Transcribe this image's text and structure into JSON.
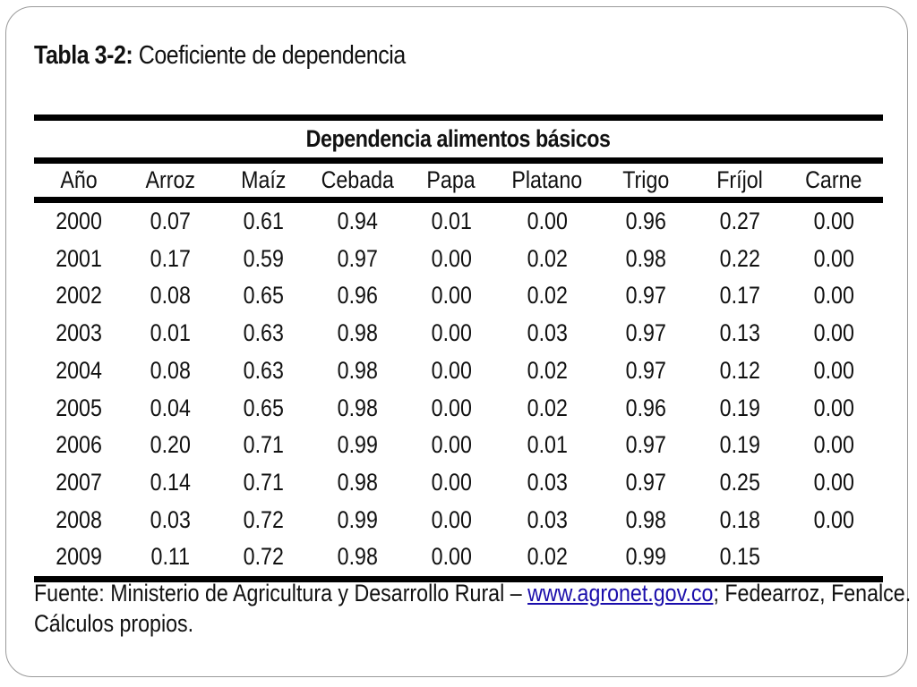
{
  "caption": {
    "label": "Tabla 3-2:",
    "title": "Coeficiente de dependencia"
  },
  "table": {
    "group_header": "Dependencia alimentos básicos",
    "columns": [
      "Año",
      "Arroz",
      "Maíz",
      "Cebada",
      "Papa",
      "Platano",
      "Trigo",
      "Fríjol",
      "Carne"
    ],
    "rows": [
      [
        "2000",
        "0.07",
        "0.61",
        "0.94",
        "0.01",
        "0.00",
        "0.96",
        "0.27",
        "0.00"
      ],
      [
        "2001",
        "0.17",
        "0.59",
        "0.97",
        "0.00",
        "0.02",
        "0.98",
        "0.22",
        "0.00"
      ],
      [
        "2002",
        "0.08",
        "0.65",
        "0.96",
        "0.00",
        "0.02",
        "0.97",
        "0.17",
        "0.00"
      ],
      [
        "2003",
        "0.01",
        "0.63",
        "0.98",
        "0.00",
        "0.03",
        "0.97",
        "0.13",
        "0.00"
      ],
      [
        "2004",
        "0.08",
        "0.63",
        "0.98",
        "0.00",
        "0.02",
        "0.97",
        "0.12",
        "0.00"
      ],
      [
        "2005",
        "0.04",
        "0.65",
        "0.98",
        "0.00",
        "0.02",
        "0.96",
        "0.19",
        "0.00"
      ],
      [
        "2006",
        "0.20",
        "0.71",
        "0.99",
        "0.00",
        "0.01",
        "0.97",
        "0.19",
        "0.00"
      ],
      [
        "2007",
        "0.14",
        "0.71",
        "0.98",
        "0.00",
        "0.03",
        "0.97",
        "0.25",
        "0.00"
      ],
      [
        "2008",
        "0.03",
        "0.72",
        "0.99",
        "0.00",
        "0.03",
        "0.98",
        "0.18",
        "0.00"
      ],
      [
        "2009",
        "0.11",
        "0.72",
        "0.98",
        "0.00",
        "0.02",
        "0.99",
        "0.15",
        ""
      ]
    ]
  },
  "source": {
    "prefix": "Fuente: Ministerio de Agricultura y Desarrollo Rural – ",
    "link_text": "www.agronet.gov.co",
    "suffix": "; Fedearroz, Fenalce.",
    "line2": "Cálculos propios."
  },
  "colors": {
    "link": "#1a0dab",
    "frame_border": "#9a9a9a"
  }
}
